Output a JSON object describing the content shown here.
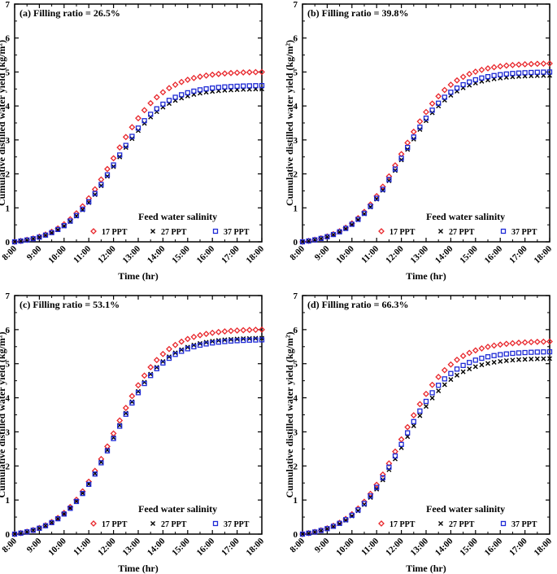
{
  "chart_data": [
    {
      "type": "scatter",
      "title": "(a) Filling ratio = 26.5%",
      "xlabel": "Time (hr)",
      "ylabel": "Cumulative distilled water yield (kg/m²)",
      "xlim": [
        8,
        18
      ],
      "ylim": [
        0,
        7
      ],
      "xticks": [
        "8:00",
        "9:00",
        "10:00",
        "11:00",
        "12:00",
        "13:00",
        "14:00",
        "15:00",
        "16:00",
        "17:00",
        "18:00"
      ],
      "yticks": [
        "0",
        "1",
        "2",
        "3",
        "4",
        "5",
        "6",
        "7"
      ],
      "legend_title": "Feed water salinity",
      "series": [
        {
          "name": "17 PPT",
          "marker": "diamond",
          "color": "#e8262b",
          "final": 5.0
        },
        {
          "name": "27 PPT",
          "marker": "x",
          "color": "#000000",
          "final": 4.5
        },
        {
          "name": "37 PPT",
          "marker": "square",
          "color": "#1f2bd6",
          "final": 4.6
        }
      ]
    },
    {
      "type": "scatter",
      "title": "(b) Filling ratio = 39.8%",
      "xlabel": "Time (hr)",
      "ylabel": "Cumulative distilled water yield (kg/m²)",
      "xlim": [
        8,
        18
      ],
      "ylim": [
        0,
        7
      ],
      "xticks": [
        "8:00",
        "9:00",
        "10:00",
        "11:00",
        "12:00",
        "13:00",
        "14:00",
        "15:00",
        "16:00",
        "17:00",
        "18:00"
      ],
      "yticks": [
        "0",
        "1",
        "2",
        "3",
        "4",
        "5",
        "6",
        "7"
      ],
      "legend_title": "Feed water salinity",
      "series": [
        {
          "name": "17 PPT",
          "marker": "diamond",
          "color": "#e8262b",
          "final": 5.25
        },
        {
          "name": "27 PPT",
          "marker": "x",
          "color": "#000000",
          "final": 4.9
        },
        {
          "name": "37 PPT",
          "marker": "square",
          "color": "#1f2bd6",
          "final": 5.0
        }
      ]
    },
    {
      "type": "scatter",
      "title": "(c) Filling ratio = 53.1%",
      "xlabel": "Time (hr)",
      "ylabel": "Cumulative distilled water yield (kg/m²)",
      "xlim": [
        8,
        18
      ],
      "ylim": [
        0,
        7
      ],
      "xticks": [
        "8:00",
        "9:00",
        "10:00",
        "11:00",
        "12:00",
        "13:00",
        "14:00",
        "15:00",
        "16:00",
        "17:00",
        "18:00"
      ],
      "yticks": [
        "0",
        "1",
        "2",
        "3",
        "4",
        "5",
        "6",
        "7"
      ],
      "legend_title": "Feed water salinity",
      "series": [
        {
          "name": "17 PPT",
          "marker": "diamond",
          "color": "#e8262b",
          "final": 6.0
        },
        {
          "name": "27 PPT",
          "marker": "x",
          "color": "#000000",
          "final": 5.75
        },
        {
          "name": "37 PPT",
          "marker": "square",
          "color": "#1f2bd6",
          "final": 5.7
        }
      ]
    },
    {
      "type": "scatter",
      "title": "(d) Filling ratio = 66.3%",
      "xlabel": "Time (hr)",
      "ylabel": "Cumulative distilled water yield (kg/m²)",
      "xlim": [
        8,
        18
      ],
      "ylim": [
        0,
        7
      ],
      "xticks": [
        "8:00",
        "9:00",
        "10:00",
        "11:00",
        "12:00",
        "13:00",
        "14:00",
        "15:00",
        "16:00",
        "17:00",
        "18:00"
      ],
      "yticks": [
        "0",
        "1",
        "2",
        "3",
        "4",
        "5",
        "6",
        "7"
      ],
      "legend_title": "Feed water salinity",
      "series": [
        {
          "name": "17 PPT",
          "marker": "diamond",
          "color": "#e8262b",
          "final": 5.65
        },
        {
          "name": "27 PPT",
          "marker": "x",
          "color": "#000000",
          "final": 5.15
        },
        {
          "name": "37 PPT",
          "marker": "square",
          "color": "#1f2bd6",
          "final": 5.35
        }
      ]
    }
  ]
}
